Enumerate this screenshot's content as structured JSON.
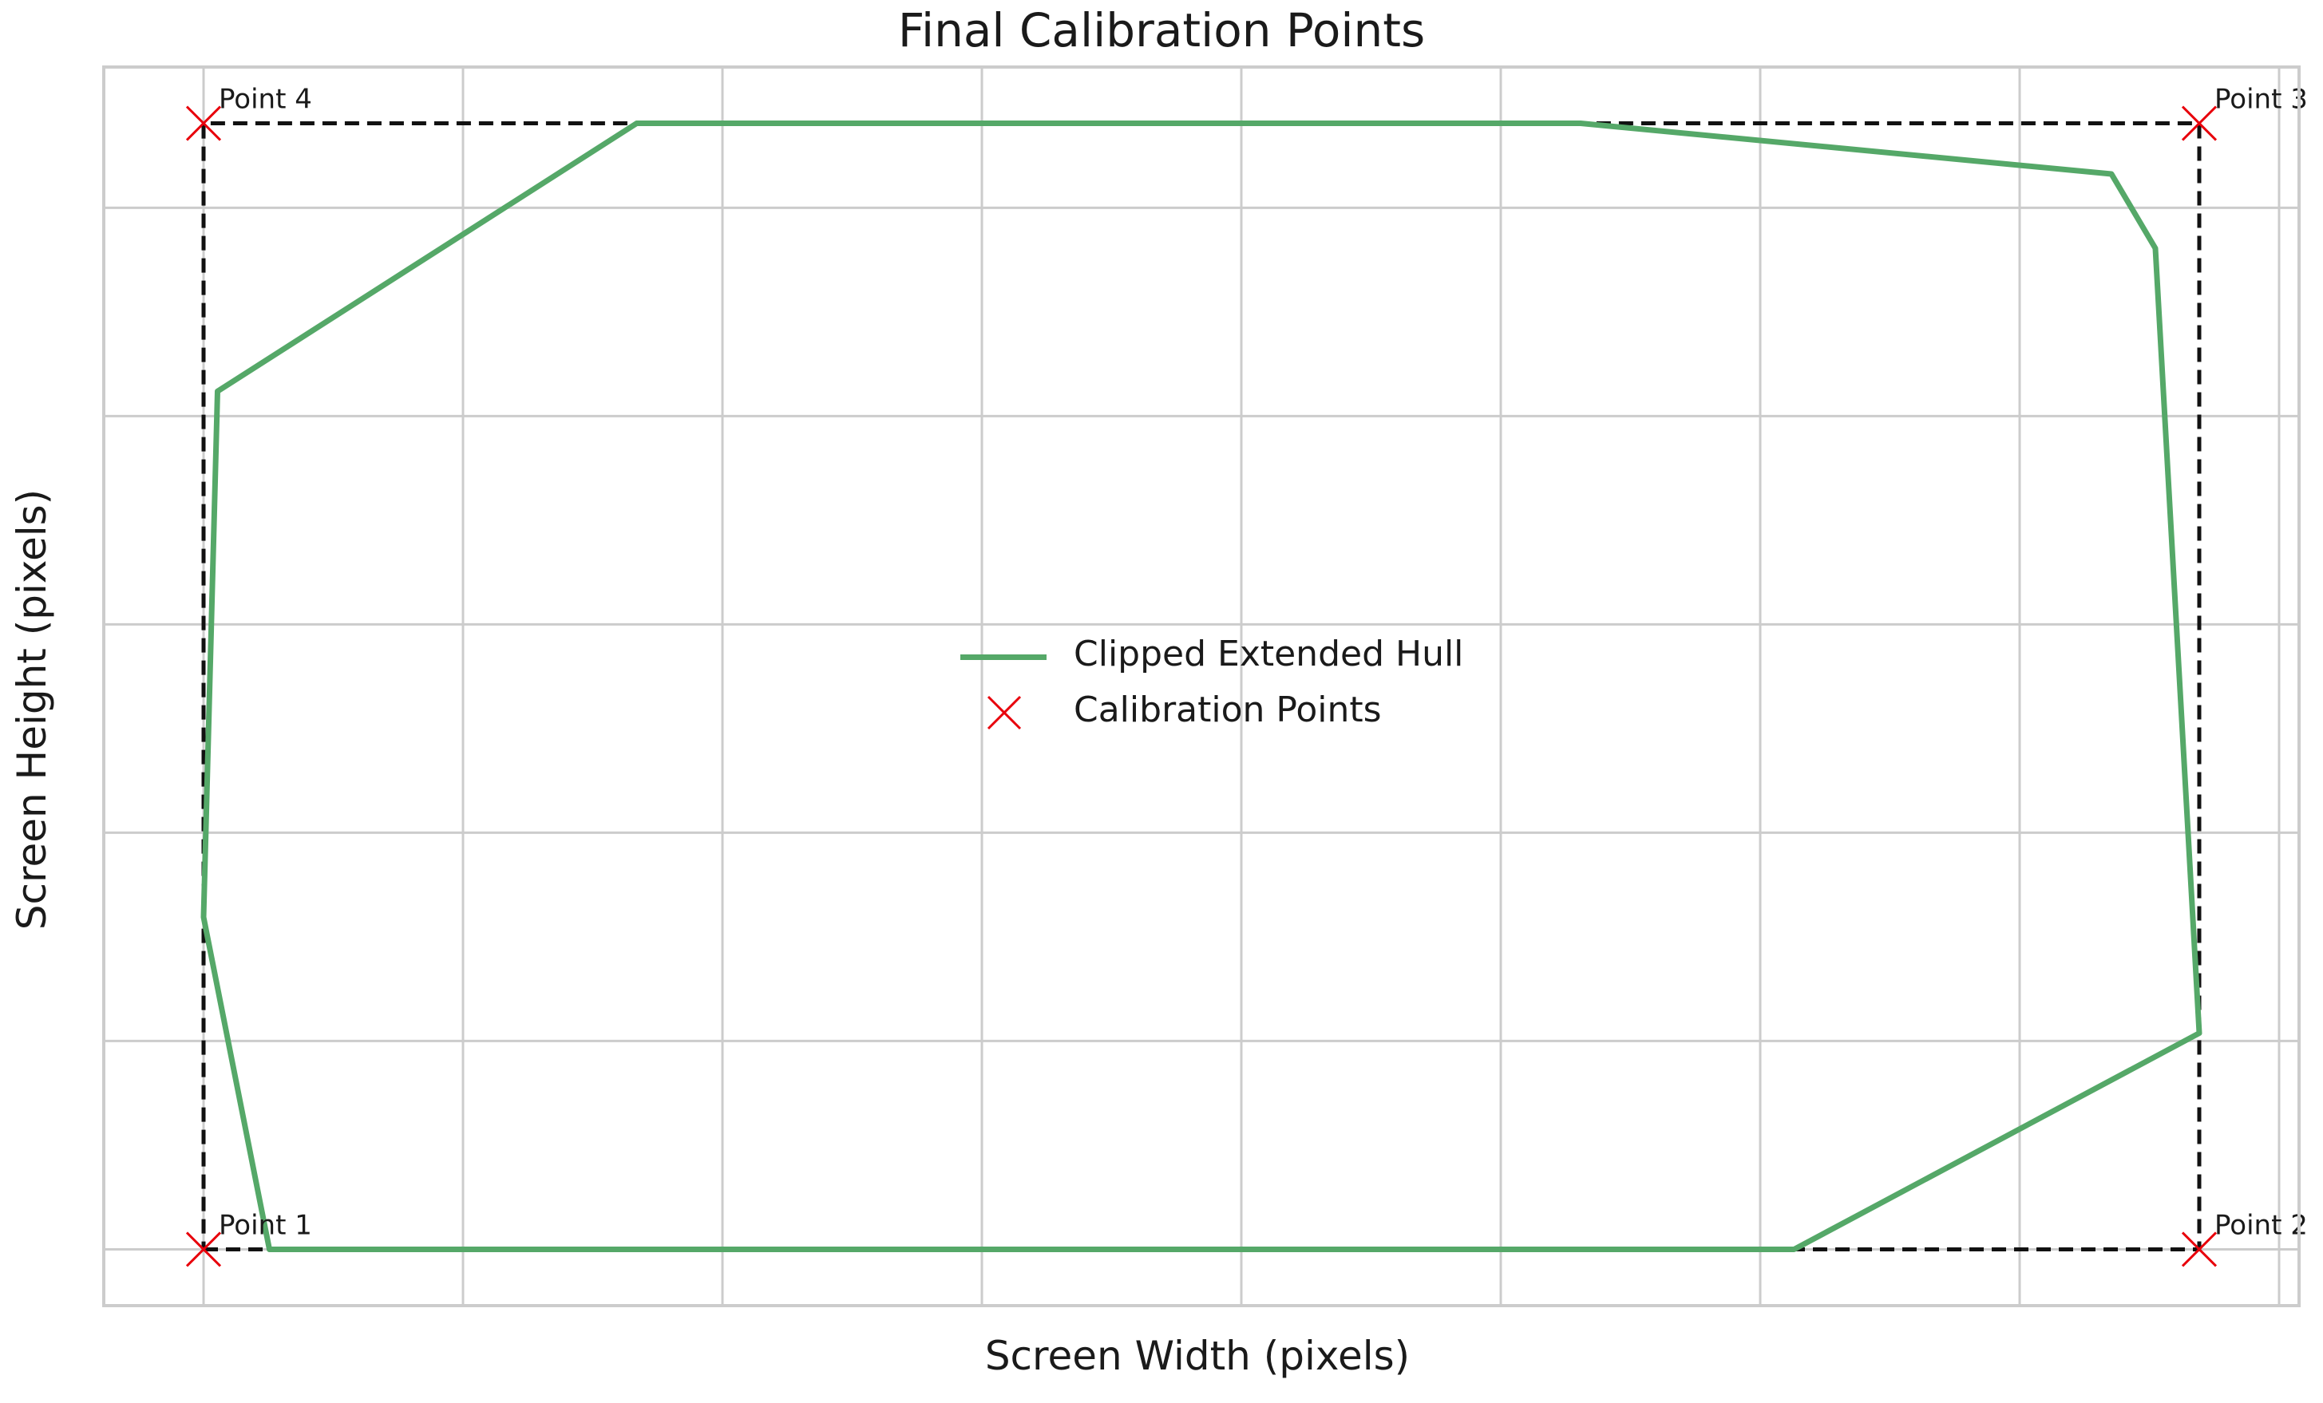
{
  "colors": {
    "hull": "#55a868",
    "marker": "#e8000b",
    "outline": "#111111",
    "grid": "#cccccc",
    "frame": "#cccccc"
  },
  "chart_data": {
    "type": "line",
    "title": "Final Calibration Points",
    "xlabel": "Screen Width (pixels)",
    "ylabel": "Screen Height (pixels)",
    "xlim": [
      -0.05,
      1.05
    ],
    "ylim": [
      -0.05,
      1.05
    ],
    "grid": true,
    "tick_labels_shown": false,
    "x_gridlines": [
      0,
      0.13,
      0.26,
      0.39,
      0.52,
      0.65,
      0.78,
      0.91,
      1.04
    ],
    "y_gridlines": [
      0,
      0.185,
      0.37,
      0.555,
      0.74,
      0.925
    ],
    "legend": {
      "placement": "center",
      "entries": [
        "Clipped Extended Hull",
        "Calibration Points"
      ]
    },
    "series": [
      {
        "name": "Clipped Extended Hull",
        "kind": "line",
        "color": "#55a868",
        "points": [
          [
            0.033,
            0.0
          ],
          [
            0.797,
            0.0
          ],
          [
            1.0,
            0.192
          ],
          [
            0.978,
            0.889
          ],
          [
            0.956,
            0.955
          ],
          [
            0.69,
            1.0
          ],
          [
            0.217,
            1.0
          ],
          [
            0.007,
            0.762
          ],
          [
            0.0,
            0.295
          ],
          [
            0.033,
            0.0
          ]
        ]
      },
      {
        "name": "Calibration Points",
        "kind": "scatter",
        "marker": "x",
        "color": "#e8000b",
        "points": [
          {
            "x": 0,
            "y": 0,
            "label": "Point 1"
          },
          {
            "x": 1,
            "y": 0,
            "label": "Point 2"
          },
          {
            "x": 1,
            "y": 1,
            "label": "Point 3"
          },
          {
            "x": 0,
            "y": 1,
            "label": "Point 4"
          }
        ]
      }
    ],
    "screen_outline": {
      "style": "dashed",
      "color": "#111111",
      "points": [
        [
          0,
          0
        ],
        [
          1,
          0
        ],
        [
          1,
          1
        ],
        [
          0,
          1
        ],
        [
          0,
          0
        ]
      ]
    }
  }
}
